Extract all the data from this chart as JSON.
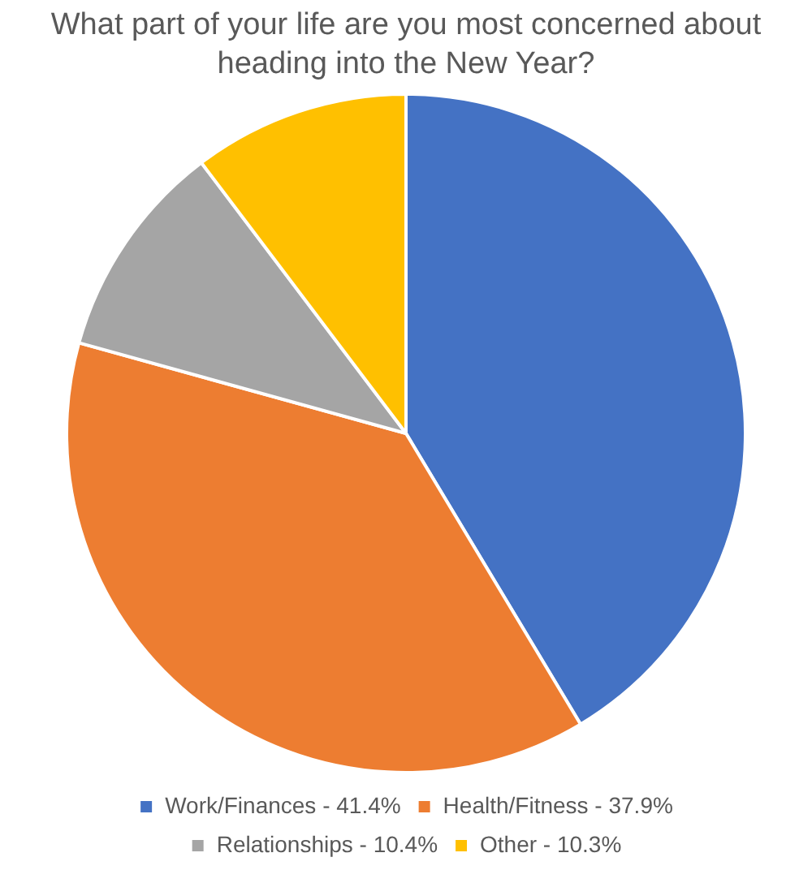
{
  "chart_data": {
    "type": "pie",
    "title": "What part of your life are you most concerned about heading into the New Year?",
    "categories": [
      "Work/Finances - 41.4%",
      "Health/Fitness - 37.9%",
      "Relationships - 10.4%",
      "Other - 10.3%"
    ],
    "values": [
      41.4,
      37.9,
      10.4,
      10.3
    ],
    "colors": [
      "#4472c4",
      "#ed7d31",
      "#a5a5a5",
      "#ffc000"
    ],
    "legend": "bottom"
  }
}
